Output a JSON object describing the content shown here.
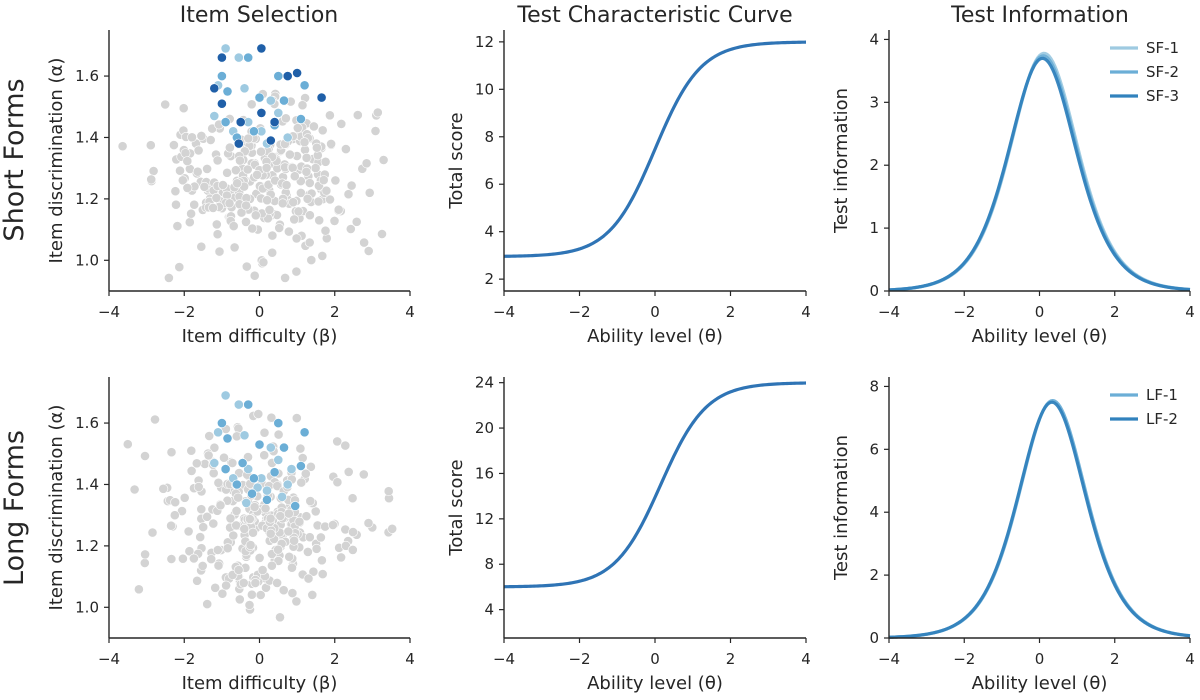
{
  "column_titles": [
    "Item Selection",
    "Test Characteristic Curve",
    "Test Information"
  ],
  "row_titles": [
    "Short Forms",
    "Long Forms"
  ],
  "colors": {
    "pool": "#d3d3d3",
    "form_1": "#9ecae1",
    "form_2": "#6baed6",
    "form_3": "#3182bd",
    "selected_dark": "#1f5fa8",
    "axis": "#262626"
  },
  "chart_data": [
    {
      "id": "sf_item_selection",
      "type": "scatter",
      "title": "Item Selection",
      "xlabel": "Item difficulty (β)",
      "ylabel": "Item discrimination (α)",
      "xlim": [
        -4,
        4
      ],
      "ylim": [
        0.9,
        1.75
      ],
      "xticks": [
        "−4",
        "−2",
        "0",
        "2",
        "4"
      ],
      "yticks": [
        "1.0",
        "1.2",
        "1.4",
        "1.6"
      ],
      "pool": {
        "n": 320,
        "difficulty_range": [
          -3.8,
          3.6
        ],
        "discrimination_range": [
          0.93,
          1.68
        ]
      },
      "series": [
        {
          "values": [
            [
              -0.9,
              1.69
            ],
            [
              -0.55,
              1.66
            ],
            [
              -1.1,
              1.57
            ],
            [
              -0.4,
              1.56
            ],
            [
              0.3,
              1.52
            ],
            [
              -0.3,
              1.45
            ],
            [
              0.5,
              1.48
            ],
            [
              -1.2,
              1.47
            ],
            [
              0.05,
              1.42
            ],
            [
              -0.7,
              1.42
            ],
            [
              0.2,
              1.38
            ],
            [
              0.75,
              1.4
            ]
          ]
        },
        {
          "values": [
            [
              -0.3,
              1.66
            ],
            [
              -1.0,
              1.6
            ],
            [
              0.5,
              1.6
            ],
            [
              -0.85,
              1.55
            ],
            [
              0.0,
              1.53
            ],
            [
              1.2,
              1.57
            ],
            [
              -0.9,
              1.45
            ],
            [
              0.65,
              1.52
            ],
            [
              -0.15,
              1.42
            ],
            [
              0.4,
              1.44
            ],
            [
              -0.6,
              1.4
            ],
            [
              1.1,
              1.46
            ]
          ]
        },
        {
          "values": [
            [
              0.05,
              1.69
            ],
            [
              -1.0,
              1.66
            ],
            [
              0.75,
              1.6
            ],
            [
              1.0,
              1.61
            ],
            [
              -1.2,
              1.56
            ],
            [
              -1.0,
              1.51
            ],
            [
              1.65,
              1.53
            ],
            [
              0.05,
              1.48
            ],
            [
              -0.5,
              1.45
            ],
            [
              0.4,
              1.45
            ],
            [
              -0.55,
              1.38
            ],
            [
              0.3,
              1.39
            ]
          ]
        }
      ]
    },
    {
      "id": "sf_tcc",
      "type": "line",
      "title": "Test Characteristic Curve",
      "xlabel": "Ability level (θ)",
      "ylabel": "Total score",
      "xlim": [
        -4,
        4
      ],
      "ylim": [
        1.5,
        12.5
      ],
      "xticks": [
        "−4",
        "−2",
        "0",
        "2",
        "4"
      ],
      "yticks": [
        "2",
        "4",
        "6",
        "8",
        "10",
        "12"
      ],
      "curve": {
        "kind": "logistic",
        "lower": 2.95,
        "upper": 12.0,
        "midpoint": 0.0,
        "slope": 1.65,
        "x_step": 0.1
      }
    },
    {
      "id": "sf_info",
      "type": "line",
      "title": "Test Information",
      "xlabel": "Ability level (θ)",
      "ylabel": "Test information",
      "xlim": [
        -4,
        4
      ],
      "ylim": [
        0,
        4.15
      ],
      "xticks": [
        "−4",
        "−2",
        "0",
        "2",
        "4"
      ],
      "yticks": [
        "0",
        "1",
        "2",
        "3",
        "4"
      ],
      "legend": {
        "location": "top-right"
      },
      "series": [
        {
          "name": "SF-1",
          "curve": {
            "kind": "bell",
            "peak": 3.78,
            "center": 0.12,
            "scale": 1.65
          }
        },
        {
          "name": "SF-2",
          "curve": {
            "kind": "bell",
            "peak": 3.74,
            "center": 0.1,
            "scale": 1.65
          }
        },
        {
          "name": "SF-3",
          "curve": {
            "kind": "bell",
            "peak": 3.7,
            "center": 0.08,
            "scale": 1.65
          }
        }
      ]
    },
    {
      "id": "lf_item_selection",
      "type": "scatter",
      "title": "",
      "xlabel": "Item difficulty (β)",
      "ylabel": "Item discrimination (α)",
      "xlim": [
        -4,
        4
      ],
      "ylim": [
        0.9,
        1.75
      ],
      "xticks": [
        "−4",
        "−2",
        "0",
        "2",
        "4"
      ],
      "yticks": [
        "1.0",
        "1.2",
        "1.4",
        "1.6"
      ],
      "pool": {
        "n": 320,
        "difficulty_range": [
          -3.8,
          3.6
        ],
        "discrimination_range": [
          0.93,
          1.68
        ]
      },
      "series": [
        {
          "values": [
            [
              -0.9,
              1.69
            ],
            [
              -0.55,
              1.66
            ],
            [
              -1.1,
              1.57
            ],
            [
              -0.4,
              1.56
            ],
            [
              0.3,
              1.52
            ],
            [
              -0.3,
              1.45
            ],
            [
              0.5,
              1.48
            ],
            [
              -1.2,
              1.47
            ],
            [
              0.05,
              1.42
            ],
            [
              -0.7,
              1.42
            ],
            [
              0.2,
              1.38
            ],
            [
              0.75,
              1.4
            ],
            [
              -0.35,
              1.34
            ],
            [
              0.85,
              1.45
            ],
            [
              -0.05,
              1.39
            ],
            [
              0.6,
              1.36
            ]
          ]
        },
        {
          "values": [
            [
              -0.3,
              1.66
            ],
            [
              -1.0,
              1.6
            ],
            [
              0.5,
              1.6
            ],
            [
              -0.85,
              1.55
            ],
            [
              0.0,
              1.53
            ],
            [
              1.2,
              1.57
            ],
            [
              -0.9,
              1.45
            ],
            [
              0.65,
              1.52
            ],
            [
              -0.15,
              1.42
            ],
            [
              0.4,
              1.44
            ],
            [
              -0.6,
              1.4
            ],
            [
              1.1,
              1.46
            ],
            [
              0.2,
              1.35
            ],
            [
              -0.45,
              1.47
            ],
            [
              0.95,
              1.33
            ],
            [
              -0.2,
              1.37
            ]
          ]
        }
      ]
    },
    {
      "id": "lf_tcc",
      "type": "line",
      "title": "",
      "xlabel": "Ability level (θ)",
      "ylabel": "Total score",
      "xlim": [
        -4,
        4
      ],
      "ylim": [
        1.5,
        24.5
      ],
      "xticks": [
        "−4",
        "−2",
        "0",
        "2",
        "4"
      ],
      "yticks": [
        "4",
        "8",
        "12",
        "16",
        "20",
        "24"
      ],
      "curve": {
        "kind": "logistic",
        "lower": 6.0,
        "upper": 24.0,
        "midpoint": 0.15,
        "slope": 1.65,
        "x_step": 0.1
      }
    },
    {
      "id": "lf_info",
      "type": "line",
      "title": "",
      "xlabel": "Ability level (θ)",
      "ylabel": "Test information",
      "xlim": [
        -4,
        4
      ],
      "ylim": [
        0,
        8.3
      ],
      "xticks": [
        "−4",
        "−2",
        "0",
        "2",
        "4"
      ],
      "yticks": [
        "0",
        "2",
        "4",
        "6",
        "8"
      ],
      "legend": {
        "location": "top-right"
      },
      "series": [
        {
          "name": "LF-1",
          "curve": {
            "kind": "bell",
            "peak": 7.55,
            "center": 0.35,
            "scale": 1.65
          }
        },
        {
          "name": "LF-2",
          "curve": {
            "kind": "bell",
            "peak": 7.5,
            "center": 0.33,
            "scale": 1.65
          }
        }
      ]
    }
  ]
}
